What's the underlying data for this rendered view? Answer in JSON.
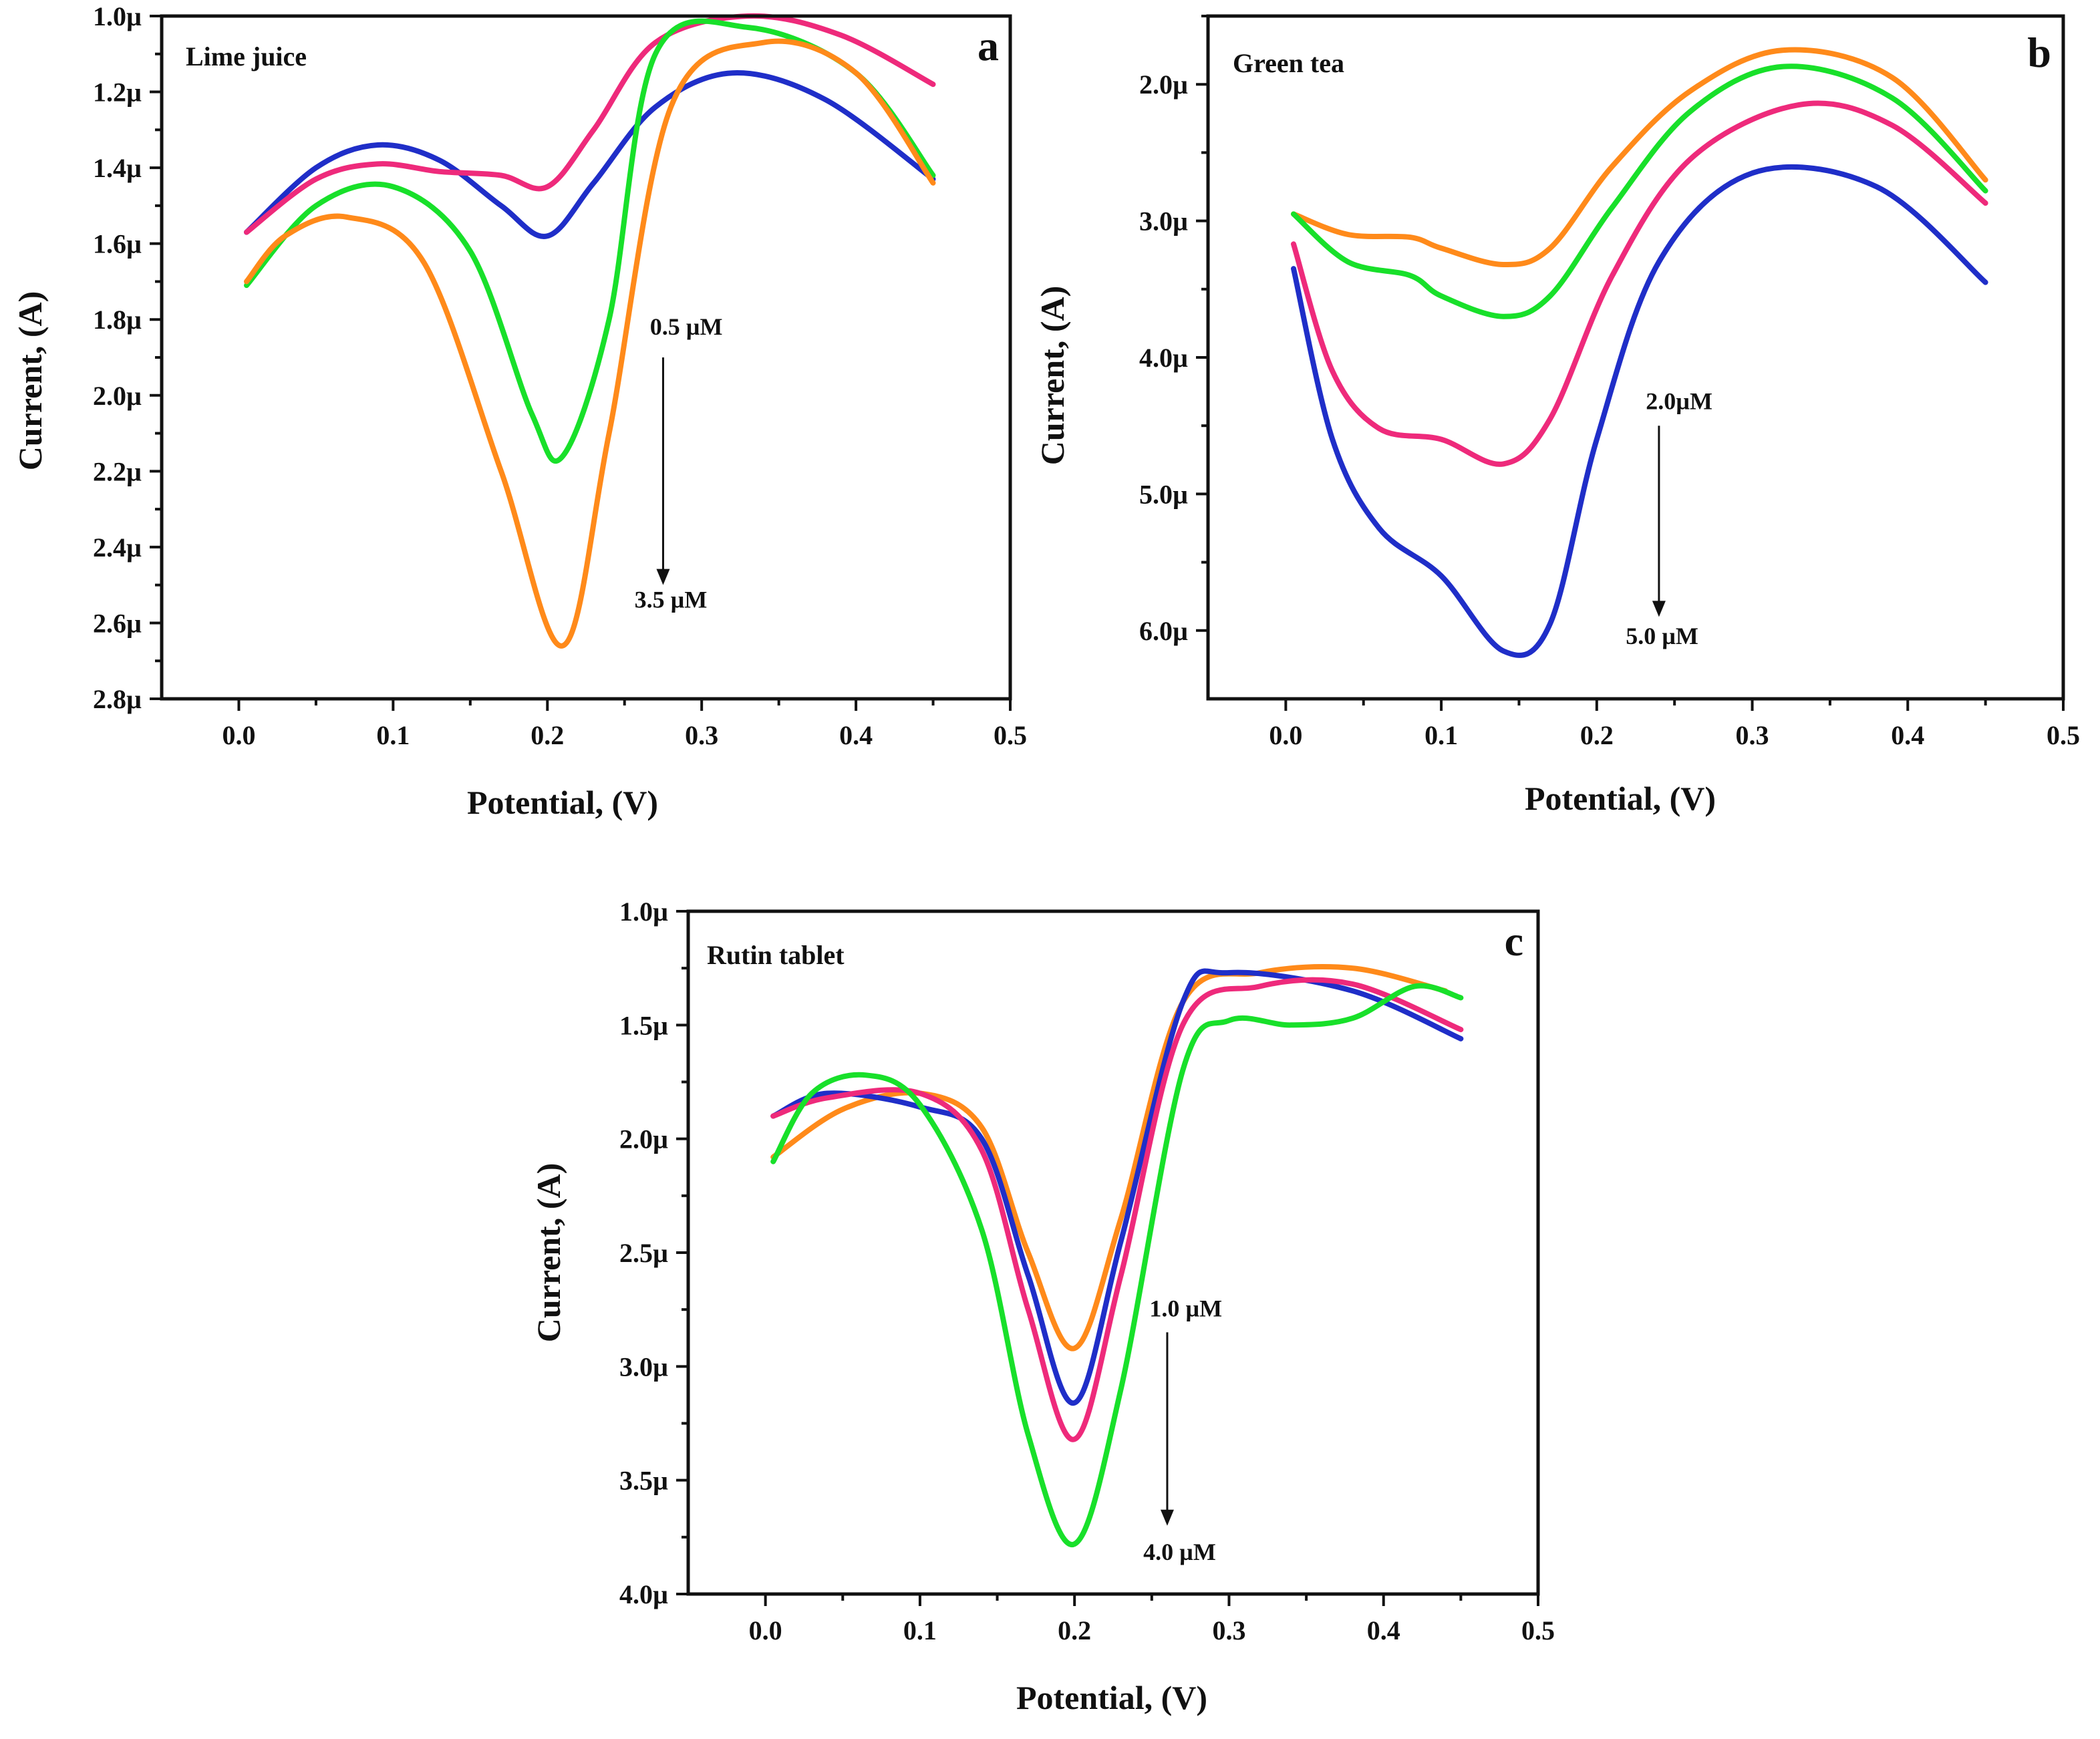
{
  "figure": {
    "colors": {
      "blue": "#1f2ec8",
      "pink": "#ee2a7b",
      "green": "#18e02a",
      "orange": "#ff8a1a",
      "axis": "#111111"
    }
  },
  "chart_data": [
    {
      "type": "line",
      "panel_label": "a",
      "subtitle": "Lime juice",
      "xlabel": "Potential, (V)",
      "ylabel": "Current, (A)",
      "xlim": [
        -0.05,
        0.5
      ],
      "ylim": [
        1.0,
        2.8
      ],
      "y_inverted": true,
      "x_ticks": [
        "0.0",
        "0.1",
        "0.2",
        "0.3",
        "0.4",
        "0.5"
      ],
      "x_tick_values": [
        0.0,
        0.1,
        0.2,
        0.3,
        0.4,
        0.5
      ],
      "y_ticks": [
        "1.0µ",
        "1.2µ",
        "1.4µ",
        "1.6µ",
        "1.8µ",
        "2.0µ",
        "2.2µ",
        "2.4µ",
        "2.6µ",
        "2.8µ"
      ],
      "y_tick_values": [
        1.0,
        1.2,
        1.4,
        1.6,
        1.8,
        2.0,
        2.2,
        2.4,
        2.6,
        2.8
      ],
      "annotation_top": "0.5 µM",
      "annotation_bottom": "3.5 µM",
      "arrow": {
        "x": 0.275,
        "y_from": 1.9,
        "y_to": 2.5
      },
      "annotation_top_pos": [
        0.29,
        1.84
      ],
      "annotation_bottom_pos": [
        0.28,
        2.56
      ],
      "series": [
        {
          "color": "#1f2ec8",
          "x": [
            0.005,
            0.05,
            0.09,
            0.13,
            0.17,
            0.2,
            0.23,
            0.27,
            0.32,
            0.38,
            0.45
          ],
          "values": [
            1.57,
            1.4,
            1.34,
            1.38,
            1.5,
            1.58,
            1.44,
            1.24,
            1.15,
            1.22,
            1.43
          ]
        },
        {
          "color": "#ee2a7b",
          "x": [
            0.005,
            0.05,
            0.09,
            0.13,
            0.17,
            0.2,
            0.23,
            0.27,
            0.33,
            0.39,
            0.45
          ],
          "values": [
            1.57,
            1.43,
            1.39,
            1.41,
            1.42,
            1.45,
            1.3,
            1.07,
            1.0,
            1.05,
            1.18
          ]
        },
        {
          "color": "#18e02a",
          "x": [
            0.005,
            0.05,
            0.1,
            0.15,
            0.19,
            0.21,
            0.24,
            0.27,
            0.33,
            0.4,
            0.45
          ],
          "values": [
            1.71,
            1.5,
            1.45,
            1.62,
            2.05,
            2.16,
            1.8,
            1.1,
            1.03,
            1.15,
            1.42
          ]
        },
        {
          "color": "#ff8a1a",
          "x": [
            0.005,
            0.03,
            0.07,
            0.12,
            0.17,
            0.21,
            0.24,
            0.28,
            0.34,
            0.4,
            0.45
          ],
          "values": [
            1.7,
            1.58,
            1.53,
            1.65,
            2.2,
            2.66,
            2.1,
            1.24,
            1.07,
            1.15,
            1.44
          ]
        }
      ]
    },
    {
      "type": "line",
      "panel_label": "b",
      "subtitle": "Green tea",
      "xlabel": "Potential, (V)",
      "ylabel": "Current, (A)",
      "xlim": [
        -0.05,
        0.5
      ],
      "ylim": [
        1.5,
        6.5
      ],
      "y_inverted": true,
      "x_ticks": [
        "0.0",
        "0.1",
        "0.2",
        "0.3",
        "0.4",
        "0.5"
      ],
      "x_tick_values": [
        0.0,
        0.1,
        0.2,
        0.3,
        0.4,
        0.5
      ],
      "y_ticks": [
        "2.0µ",
        "3.0µ",
        "4.0µ",
        "5.0µ",
        "6.0µ"
      ],
      "y_tick_values": [
        2.0,
        3.0,
        4.0,
        5.0,
        6.0
      ],
      "annotation_top": "2.0µM",
      "annotation_bottom": "5.0 µM",
      "arrow": {
        "x": 0.24,
        "y_from": 4.5,
        "y_to": 5.9
      },
      "annotation_top_pos": [
        0.253,
        4.38
      ],
      "annotation_bottom_pos": [
        0.242,
        6.1
      ],
      "series": [
        {
          "color": "#ff8a1a",
          "x": [
            0.005,
            0.04,
            0.08,
            0.1,
            0.14,
            0.17,
            0.21,
            0.26,
            0.32,
            0.39,
            0.45
          ],
          "values": [
            2.95,
            3.1,
            3.12,
            3.2,
            3.32,
            3.2,
            2.6,
            2.05,
            1.75,
            1.95,
            2.7
          ]
        },
        {
          "color": "#18e02a",
          "x": [
            0.005,
            0.04,
            0.08,
            0.1,
            0.14,
            0.17,
            0.21,
            0.26,
            0.32,
            0.39,
            0.45
          ],
          "values": [
            2.95,
            3.3,
            3.4,
            3.55,
            3.7,
            3.55,
            2.9,
            2.2,
            1.87,
            2.1,
            2.78
          ]
        },
        {
          "color": "#ee2a7b",
          "x": [
            0.005,
            0.03,
            0.06,
            0.1,
            0.14,
            0.17,
            0.21,
            0.26,
            0.33,
            0.39,
            0.45
          ],
          "values": [
            3.17,
            4.1,
            4.52,
            4.6,
            4.78,
            4.45,
            3.4,
            2.55,
            2.15,
            2.3,
            2.87
          ]
        },
        {
          "color": "#1f2ec8",
          "x": [
            0.005,
            0.03,
            0.06,
            0.1,
            0.14,
            0.17,
            0.2,
            0.24,
            0.3,
            0.38,
            0.45
          ],
          "values": [
            3.35,
            4.6,
            5.25,
            5.6,
            6.15,
            5.95,
            4.6,
            3.3,
            2.65,
            2.75,
            3.45
          ]
        }
      ]
    },
    {
      "type": "line",
      "panel_label": "c",
      "subtitle": "Rutin tablet",
      "xlabel": "Potential, (V)",
      "ylabel": "Current, (A)",
      "xlim": [
        -0.05,
        0.5
      ],
      "ylim": [
        1.0,
        4.0
      ],
      "y_inverted": true,
      "x_ticks": [
        "0.0",
        "0.1",
        "0.2",
        "0.3",
        "0.4",
        "0.5"
      ],
      "x_tick_values": [
        0.0,
        0.1,
        0.2,
        0.3,
        0.4,
        0.5
      ],
      "y_ticks": [
        "1.0µ",
        "1.5µ",
        "2.0µ",
        "2.5µ",
        "3.0µ",
        "3.5µ",
        "4.0µ"
      ],
      "y_tick_values": [
        1.0,
        1.5,
        2.0,
        2.5,
        3.0,
        3.5,
        4.0
      ],
      "annotation_top": "1.0 µM",
      "annotation_bottom": "4.0 µM",
      "arrow": {
        "x": 0.26,
        "y_from": 2.85,
        "y_to": 3.7
      },
      "annotation_top_pos": [
        0.272,
        2.78
      ],
      "annotation_bottom_pos": [
        0.268,
        3.85
      ],
      "series": [
        {
          "color": "#ff8a1a",
          "x": [
            0.005,
            0.05,
            0.1,
            0.14,
            0.17,
            0.2,
            0.23,
            0.27,
            0.32,
            0.38,
            0.44
          ],
          "values": [
            2.08,
            1.87,
            1.8,
            1.95,
            2.5,
            2.92,
            2.35,
            1.4,
            1.27,
            1.25,
            1.35
          ]
        },
        {
          "color": "#1f2ec8",
          "x": [
            0.005,
            0.04,
            0.1,
            0.14,
            0.17,
            0.2,
            0.23,
            0.27,
            0.3,
            0.38,
            0.45
          ],
          "values": [
            1.9,
            1.8,
            1.86,
            2.0,
            2.6,
            3.16,
            2.45,
            1.4,
            1.27,
            1.35,
            1.56
          ]
        },
        {
          "color": "#ee2a7b",
          "x": [
            0.005,
            0.04,
            0.1,
            0.14,
            0.17,
            0.2,
            0.23,
            0.27,
            0.32,
            0.38,
            0.45
          ],
          "values": [
            1.9,
            1.82,
            1.8,
            2.05,
            2.75,
            3.32,
            2.6,
            1.5,
            1.33,
            1.32,
            1.52
          ]
        },
        {
          "color": "#18e02a",
          "x": [
            0.005,
            0.03,
            0.065,
            0.1,
            0.14,
            0.17,
            0.2,
            0.23,
            0.27,
            0.3,
            0.34,
            0.38,
            0.42,
            0.45
          ],
          "values": [
            2.1,
            1.8,
            1.72,
            1.85,
            2.4,
            3.3,
            3.78,
            3.1,
            1.7,
            1.48,
            1.5,
            1.47,
            1.33,
            1.38
          ]
        }
      ]
    }
  ]
}
